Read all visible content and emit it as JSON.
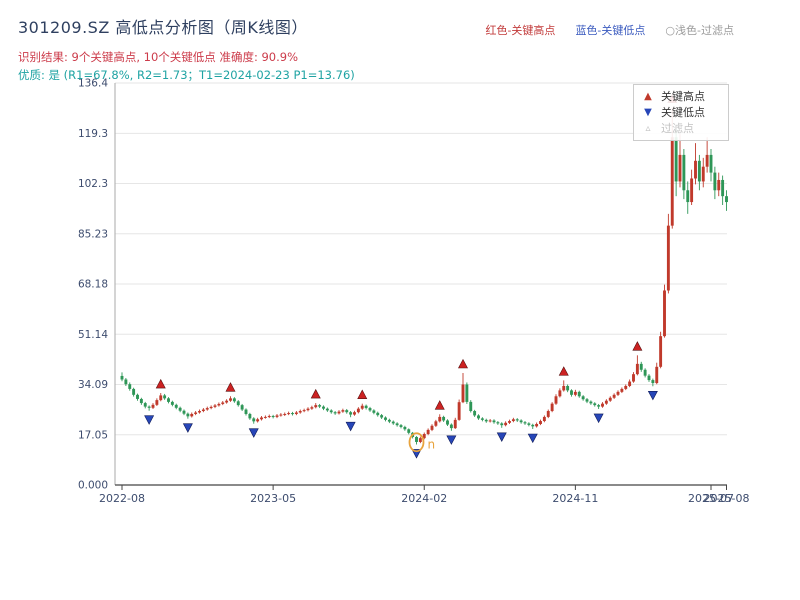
{
  "header": {
    "title": "301209.SZ 高低点分析图（周K线图）",
    "legend_top": [
      {
        "label": "红色-关键高点",
        "color": "#c23b3b"
      },
      {
        "label": "蓝色-关键低点",
        "color": "#3b5bbf"
      },
      {
        "label": "○浅色-过滤点",
        "color": "#9a9a9a"
      }
    ],
    "subtitle_result": "识别结果: 9个关键高点, 10个关键低点  准确度: 90.9%",
    "subtitle_quality": "优质: 是 (R1=67.8%, R2=1.73；T1=2024-02-23 P1=13.76)"
  },
  "chart_data": {
    "type": "candlestick",
    "symbol": "301209.SZ",
    "frequency": "weekly",
    "title": "301209.SZ 高低点分析图（周K线图）",
    "ylim": [
      0,
      136.4
    ],
    "grid": "horizontal-only",
    "legend_position": "upper-right-inside",
    "y_ticks": [
      "0.000",
      "17.05",
      "34.09",
      "51.14",
      "68.18",
      "85.23",
      "102.3",
      "119.3",
      "136.4"
    ],
    "x_ticks": [
      {
        "week": 0,
        "label": "2022-08"
      },
      {
        "week": 39,
        "label": "2023-05"
      },
      {
        "week": 78,
        "label": "2024-02"
      },
      {
        "week": 117,
        "label": "2024-11"
      },
      {
        "week": 152,
        "label": "2025-07"
      },
      {
        "week": 156,
        "label": "2025-08"
      }
    ],
    "up_color": "#c0392b",
    "down_color": "#2e9657",
    "candles_ohlc": [
      [
        37.0,
        38.2,
        35.2,
        35.8
      ],
      [
        35.8,
        36.3,
        33.6,
        34.2
      ],
      [
        34.2,
        34.8,
        32.0,
        32.6
      ],
      [
        32.6,
        33.0,
        30.0,
        30.6
      ],
      [
        30.6,
        31.0,
        28.6,
        29.2
      ],
      [
        29.2,
        29.6,
        27.2,
        27.8
      ],
      [
        27.8,
        28.2,
        26.0,
        26.6
      ],
      [
        26.6,
        27.0,
        25.2,
        26.2
      ],
      [
        26.2,
        27.8,
        25.8,
        27.2
      ],
      [
        27.2,
        29.4,
        26.8,
        28.8
      ],
      [
        28.8,
        31.2,
        28.4,
        30.4
      ],
      [
        30.4,
        30.9,
        28.9,
        29.4
      ],
      [
        29.4,
        29.8,
        27.7,
        28.2
      ],
      [
        28.2,
        28.6,
        26.7,
        27.2
      ],
      [
        27.2,
        27.6,
        25.7,
        26.2
      ],
      [
        26.2,
        26.6,
        24.7,
        25.2
      ],
      [
        25.2,
        25.6,
        23.7,
        24.2
      ],
      [
        24.2,
        24.6,
        22.5,
        23.3
      ],
      [
        23.3,
        24.6,
        22.9,
        24.1
      ],
      [
        24.1,
        25.1,
        23.7,
        24.6
      ],
      [
        24.6,
        25.6,
        24.2,
        25.1
      ],
      [
        25.1,
        26.1,
        24.7,
        25.6
      ],
      [
        25.6,
        26.6,
        25.2,
        26.1
      ],
      [
        26.1,
        27.0,
        25.7,
        26.5
      ],
      [
        26.5,
        27.5,
        26.1,
        27.0
      ],
      [
        27.0,
        28.0,
        26.6,
        27.5
      ],
      [
        27.5,
        28.5,
        27.1,
        28.0
      ],
      [
        28.0,
        29.1,
        27.6,
        28.6
      ],
      [
        28.6,
        30.1,
        28.2,
        29.4
      ],
      [
        29.4,
        29.8,
        27.9,
        28.4
      ],
      [
        28.4,
        28.8,
        26.6,
        27.1
      ],
      [
        27.1,
        27.5,
        25.1,
        25.6
      ],
      [
        25.6,
        26.0,
        23.6,
        24.1
      ],
      [
        24.1,
        24.5,
        22.1,
        22.6
      ],
      [
        22.6,
        23.0,
        20.8,
        21.6
      ],
      [
        21.6,
        22.8,
        21.2,
        22.3
      ],
      [
        22.3,
        23.4,
        21.9,
        22.9
      ],
      [
        22.9,
        23.6,
        22.5,
        23.1
      ],
      [
        23.1,
        23.9,
        22.7,
        23.4
      ],
      [
        23.4,
        23.8,
        22.6,
        23.1
      ],
      [
        23.1,
        24.1,
        22.7,
        23.6
      ],
      [
        23.6,
        24.4,
        23.2,
        23.9
      ],
      [
        23.9,
        24.6,
        23.4,
        24.1
      ],
      [
        24.1,
        24.9,
        23.7,
        24.4
      ],
      [
        24.4,
        24.8,
        23.6,
        24.1
      ],
      [
        24.1,
        25.1,
        23.7,
        24.6
      ],
      [
        24.6,
        25.6,
        24.2,
        25.1
      ],
      [
        25.1,
        25.9,
        24.7,
        25.4
      ],
      [
        25.4,
        26.4,
        25.0,
        25.9
      ],
      [
        25.9,
        26.9,
        25.5,
        26.4
      ],
      [
        26.4,
        27.8,
        26.0,
        27.1
      ],
      [
        27.1,
        27.5,
        26.1,
        26.6
      ],
      [
        26.6,
        27.0,
        25.4,
        25.9
      ],
      [
        25.9,
        26.3,
        24.8,
        25.3
      ],
      [
        25.3,
        25.7,
        24.2,
        24.7
      ],
      [
        24.7,
        25.1,
        23.8,
        24.3
      ],
      [
        24.3,
        25.4,
        23.9,
        24.9
      ],
      [
        24.9,
        25.9,
        24.5,
        25.4
      ],
      [
        25.4,
        25.8,
        24.2,
        24.7
      ],
      [
        24.7,
        25.1,
        23.0,
        23.9
      ],
      [
        23.9,
        25.2,
        23.5,
        24.7
      ],
      [
        24.7,
        26.4,
        24.3,
        25.9
      ],
      [
        25.9,
        27.6,
        25.5,
        26.9
      ],
      [
        26.9,
        27.3,
        25.6,
        26.1
      ],
      [
        26.1,
        26.5,
        24.8,
        25.3
      ],
      [
        25.3,
        25.7,
        24.0,
        24.5
      ],
      [
        24.5,
        24.9,
        23.2,
        23.7
      ],
      [
        23.7,
        24.1,
        22.4,
        22.9
      ],
      [
        22.9,
        23.3,
        21.6,
        22.1
      ],
      [
        22.1,
        22.5,
        21.0,
        21.5
      ],
      [
        21.5,
        21.9,
        20.4,
        20.9
      ],
      [
        20.9,
        21.3,
        19.8,
        20.3
      ],
      [
        20.3,
        20.7,
        19.2,
        19.7
      ],
      [
        19.7,
        20.1,
        18.4,
        18.9
      ],
      [
        18.9,
        19.2,
        17.2,
        17.7
      ],
      [
        17.7,
        18.0,
        15.8,
        16.3
      ],
      [
        16.3,
        16.6,
        13.76,
        14.6
      ],
      [
        14.6,
        16.4,
        14.2,
        15.9
      ],
      [
        15.9,
        17.8,
        15.5,
        17.3
      ],
      [
        17.3,
        19.2,
        16.9,
        18.7
      ],
      [
        18.7,
        20.6,
        18.3,
        20.1
      ],
      [
        20.1,
        22.1,
        19.7,
        21.6
      ],
      [
        21.6,
        24.0,
        21.2,
        23.1
      ],
      [
        23.1,
        23.5,
        21.4,
        21.9
      ],
      [
        21.9,
        22.3,
        20.0,
        20.5
      ],
      [
        20.5,
        20.9,
        18.4,
        19.3
      ],
      [
        19.3,
        22.8,
        19.0,
        22.1
      ],
      [
        22.1,
        29.0,
        21.8,
        28.1
      ],
      [
        28.1,
        38.0,
        27.8,
        34.1
      ],
      [
        34.1,
        34.8,
        27.5,
        28.2
      ],
      [
        28.2,
        28.8,
        24.6,
        25.1
      ],
      [
        25.1,
        25.5,
        23.1,
        23.6
      ],
      [
        23.6,
        24.0,
        22.1,
        22.6
      ],
      [
        22.6,
        23.0,
        21.6,
        22.1
      ],
      [
        22.1,
        22.5,
        21.1,
        21.6
      ],
      [
        21.6,
        22.4,
        21.2,
        21.9
      ],
      [
        21.9,
        22.3,
        20.8,
        21.3
      ],
      [
        21.3,
        21.7,
        20.4,
        20.9
      ],
      [
        20.9,
        21.3,
        19.4,
        20.3
      ],
      [
        20.3,
        21.6,
        19.9,
        21.1
      ],
      [
        21.1,
        22.2,
        20.7,
        21.7
      ],
      [
        21.7,
        22.8,
        21.3,
        22.3
      ],
      [
        22.3,
        22.7,
        21.4,
        21.9
      ],
      [
        21.9,
        22.3,
        20.8,
        21.3
      ],
      [
        21.3,
        21.7,
        20.4,
        20.9
      ],
      [
        20.9,
        21.3,
        19.9,
        20.4
      ],
      [
        20.4,
        20.8,
        19.0,
        19.9
      ],
      [
        19.9,
        21.2,
        19.5,
        20.7
      ],
      [
        20.7,
        22.2,
        20.3,
        21.7
      ],
      [
        21.7,
        23.6,
        21.3,
        23.1
      ],
      [
        23.1,
        25.6,
        22.7,
        25.1
      ],
      [
        25.1,
        28.1,
        24.7,
        27.6
      ],
      [
        27.6,
        30.8,
        27.2,
        30.1
      ],
      [
        30.1,
        32.8,
        29.7,
        32.1
      ],
      [
        32.1,
        35.5,
        31.7,
        33.6
      ],
      [
        33.6,
        34.1,
        31.5,
        32.1
      ],
      [
        32.1,
        32.5,
        30.0,
        30.6
      ],
      [
        30.6,
        32.3,
        30.1,
        31.6
      ],
      [
        31.6,
        32.0,
        29.6,
        30.1
      ],
      [
        30.1,
        30.5,
        28.6,
        29.1
      ],
      [
        29.1,
        29.5,
        27.8,
        28.3
      ],
      [
        28.3,
        28.7,
        27.2,
        27.7
      ],
      [
        27.7,
        28.1,
        26.6,
        27.1
      ],
      [
        27.1,
        27.5,
        25.8,
        26.6
      ],
      [
        26.6,
        28.1,
        26.2,
        27.6
      ],
      [
        27.6,
        29.1,
        27.2,
        28.6
      ],
      [
        28.6,
        30.1,
        28.2,
        29.6
      ],
      [
        29.6,
        31.1,
        29.2,
        30.6
      ],
      [
        30.6,
        32.1,
        30.2,
        31.6
      ],
      [
        31.6,
        33.1,
        31.2,
        32.6
      ],
      [
        32.6,
        34.1,
        32.2,
        33.6
      ],
      [
        33.6,
        35.8,
        33.2,
        35.1
      ],
      [
        35.1,
        38.3,
        34.7,
        37.6
      ],
      [
        37.6,
        44.0,
        37.2,
        41.1
      ],
      [
        41.1,
        41.8,
        38.4,
        39.1
      ],
      [
        39.1,
        39.6,
        36.5,
        37.1
      ],
      [
        37.1,
        37.6,
        35.0,
        35.6
      ],
      [
        35.6,
        36.1,
        33.5,
        34.6
      ],
      [
        34.6,
        41.5,
        34.2,
        40.1
      ],
      [
        40.1,
        52.0,
        39.6,
        50.5
      ],
      [
        50.5,
        68.0,
        50.0,
        66.0
      ],
      [
        66.0,
        92.0,
        65.0,
        88.0
      ],
      [
        88.0,
        128.0,
        87.0,
        118.0
      ],
      [
        118.0,
        121.0,
        98.0,
        103.0
      ],
      [
        103.0,
        119.0,
        101.0,
        112.0
      ],
      [
        112.0,
        114.0,
        97.0,
        100.0
      ],
      [
        100.0,
        103.0,
        92.0,
        96.0
      ],
      [
        96.0,
        107.0,
        95.0,
        104.0
      ],
      [
        104.0,
        116.0,
        102.0,
        110.0
      ],
      [
        110.0,
        112.0,
        100.0,
        103.0
      ],
      [
        103.0,
        111.0,
        101.0,
        108.0
      ],
      [
        108.0,
        118.0,
        106.0,
        112.0
      ],
      [
        112.0,
        114.0,
        103.0,
        106.0
      ],
      [
        106.0,
        108.0,
        97.0,
        100.0
      ],
      [
        100.0,
        106.0,
        98.0,
        103.5
      ],
      [
        103.5,
        105.0,
        95.0,
        98.0
      ],
      [
        98.0,
        100.0,
        93.0,
        96.0
      ]
    ],
    "key_highs": [
      {
        "week": 10,
        "price": 31.2
      },
      {
        "week": 28,
        "price": 30.1
      },
      {
        "week": 50,
        "price": 27.8
      },
      {
        "week": 62,
        "price": 27.6
      },
      {
        "week": 82,
        "price": 24.0
      },
      {
        "week": 88,
        "price": 38.0
      },
      {
        "week": 114,
        "price": 35.5
      },
      {
        "week": 133,
        "price": 44.0
      },
      {
        "week": 142,
        "price": 128.0
      }
    ],
    "key_lows": [
      {
        "week": 7,
        "price": 25.2
      },
      {
        "week": 17,
        "price": 22.5
      },
      {
        "week": 34,
        "price": 20.8
      },
      {
        "week": 59,
        "price": 23.0
      },
      {
        "week": 76,
        "price": 13.76
      },
      {
        "week": 85,
        "price": 18.4
      },
      {
        "week": 98,
        "price": 19.4
      },
      {
        "week": 106,
        "price": 19.0
      },
      {
        "week": 123,
        "price": 25.8
      },
      {
        "week": 137,
        "price": 33.5
      }
    ],
    "filtered_points": [],
    "annotation": {
      "week": 76,
      "price": 14.5,
      "label": "n",
      "color": "#e8a33d"
    },
    "marker_high_color": "#cc2222",
    "marker_low_color": "#2746b8",
    "grid_color": "#e6e6e6",
    "axis_color": "#444444",
    "tick_label_color": "#3d4c6e",
    "legend_box": [
      {
        "label": "关键高点",
        "marker": "triangle-up",
        "color": "#c0392b"
      },
      {
        "label": "关键低点",
        "marker": "triangle-down",
        "color": "#2746b8"
      },
      {
        "label": "过滤点",
        "marker": "triangle-open",
        "color": "#c2c2c2"
      }
    ]
  }
}
